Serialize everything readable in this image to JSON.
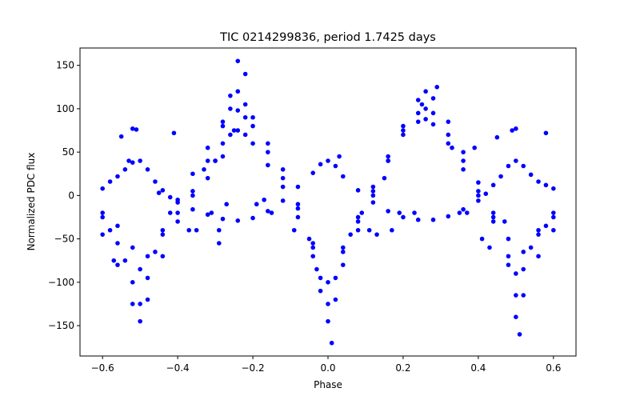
{
  "chart_data": {
    "type": "scatter",
    "title": "TIC 0214299836, period 1.7425 days",
    "xlabel": "Phase",
    "ylabel": "Normalized PDC flux",
    "xlim": [
      -0.66,
      0.66
    ],
    "ylim": [
      -185,
      170
    ],
    "xticks": [
      -0.6,
      -0.4,
      -0.2,
      0.0,
      0.2,
      0.4,
      0.6
    ],
    "xtick_labels": [
      "−0.6",
      "−0.4",
      "−0.2",
      "0.0",
      "0.2",
      "0.4",
      "0.6"
    ],
    "yticks": [
      -150,
      -100,
      -50,
      0,
      50,
      100,
      150
    ],
    "ytick_labels": [
      "−150",
      "−100",
      "−50",
      "0",
      "50",
      "100",
      "150"
    ],
    "grid": false,
    "series": [
      {
        "color": "#0000ff",
        "marker": "circle",
        "x": [
          -0.6,
          -0.58,
          -0.56,
          -0.54,
          -0.52,
          -0.5,
          -0.48,
          -0.46,
          -0.44,
          -0.42,
          -0.4,
          -0.36,
          -0.32,
          -0.28,
          -0.24,
          -0.2,
          -0.16,
          -0.12,
          -0.08,
          -0.04,
          -0.02,
          0.0,
          0.02,
          0.04,
          0.08,
          0.12,
          0.16,
          0.2,
          0.24,
          0.28,
          0.32,
          0.36,
          0.4,
          0.42,
          0.44,
          0.46,
          0.48,
          0.5,
          0.52,
          0.54,
          0.56,
          0.58,
          0.6
        ],
        "y": [
          8,
          16,
          22,
          30,
          38,
          40,
          30,
          16,
          6,
          -2,
          -8,
          -16,
          -22,
          -27,
          -29,
          -26,
          -18,
          -6,
          10,
          26,
          36,
          40,
          34,
          22,
          6,
          -8,
          -18,
          -25,
          -28,
          -28,
          -24,
          -16,
          -6,
          2,
          12,
          22,
          34,
          40,
          34,
          24,
          16,
          12,
          8
        ]
      },
      {
        "color": "#0000ff",
        "marker": "circle",
        "x": [
          -0.6,
          -0.58,
          -0.56,
          -0.54,
          -0.52,
          -0.5,
          -0.48,
          -0.46,
          -0.44,
          -0.42,
          -0.4,
          -0.36,
          -0.32,
          -0.28,
          -0.26,
          -0.24,
          -0.22,
          -0.2,
          -0.16,
          -0.12,
          -0.08,
          -0.04,
          -0.02,
          0.0,
          0.02,
          0.04,
          0.08,
          0.12,
          0.16,
          0.2,
          0.24,
          0.26,
          0.28,
          0.32,
          0.36,
          0.4,
          0.44,
          0.48,
          0.5,
          0.52,
          0.54,
          0.56,
          0.58,
          0.6
        ],
        "y": [
          -25,
          -40,
          -55,
          -75,
          -100,
          -125,
          -95,
          -65,
          -40,
          -20,
          -5,
          25,
          55,
          85,
          100,
          98,
          90,
          80,
          50,
          20,
          -15,
          -55,
          -95,
          -125,
          -95,
          -65,
          -30,
          5,
          40,
          75,
          95,
          100,
          95,
          70,
          40,
          5,
          -30,
          -70,
          -115,
          -85,
          -60,
          -45,
          -35,
          -25
        ]
      },
      {
        "color": "#0000ff",
        "marker": "circle",
        "x": [
          -0.6,
          -0.56,
          -0.52,
          -0.5,
          -0.48,
          -0.44,
          -0.4,
          -0.36,
          -0.32,
          -0.28,
          -0.26,
          -0.24,
          -0.22,
          -0.2,
          -0.16,
          -0.12,
          -0.08,
          -0.04,
          -0.02,
          0.0,
          0.02,
          0.04,
          0.08,
          0.12,
          0.16,
          0.2,
          0.24,
          0.26,
          0.28,
          0.32,
          0.36,
          0.4,
          0.44,
          0.48,
          0.5,
          0.52,
          0.56,
          0.6
        ],
        "y": [
          -45,
          -80,
          -125,
          -145,
          -120,
          -70,
          -30,
          5,
          40,
          80,
          115,
          120,
          105,
          90,
          60,
          30,
          -10,
          -70,
          -110,
          -145,
          -120,
          -80,
          -40,
          0,
          40,
          80,
          110,
          120,
          112,
          85,
          50,
          15,
          -25,
          -80,
          -140,
          -115,
          -70,
          -40
        ]
      },
      {
        "color": "#0000ff",
        "marker": "circle",
        "x": [
          -0.6,
          -0.56,
          -0.52,
          -0.5,
          -0.48,
          -0.44,
          -0.4,
          -0.36,
          -0.32,
          -0.3,
          -0.28,
          -0.26,
          -0.24,
          -0.22,
          -0.2,
          -0.16,
          -0.12,
          -0.08,
          -0.04,
          0.0,
          0.04,
          0.08,
          0.12,
          0.16,
          0.2,
          0.24,
          0.26,
          0.28,
          0.32,
          0.36,
          0.4,
          0.44,
          0.48,
          0.5,
          0.52,
          0.56,
          0.6
        ],
        "y": [
          -20,
          -35,
          -60,
          -85,
          -70,
          -45,
          -20,
          0,
          20,
          40,
          60,
          70,
          75,
          70,
          60,
          35,
          10,
          -25,
          -60,
          -100,
          -60,
          -25,
          10,
          45,
          70,
          85,
          88,
          82,
          60,
          30,
          0,
          -20,
          -50,
          -90,
          -65,
          -40,
          -20
        ]
      },
      {
        "color": "#0000ff",
        "marker": "circle",
        "x": [
          -0.57,
          -0.55,
          -0.53,
          -0.52,
          -0.51,
          -0.45,
          -0.41,
          -0.37,
          -0.35,
          -0.33,
          -0.31,
          -0.3,
          -0.29,
          -0.29,
          -0.28,
          -0.27,
          -0.25,
          -0.24,
          -0.22,
          -0.19,
          -0.17,
          -0.15,
          -0.09,
          -0.05,
          -0.03,
          0.01,
          0.03,
          0.06,
          0.09,
          0.11,
          0.13,
          0.15,
          0.17,
          0.19,
          0.23,
          0.25,
          0.29,
          0.33,
          0.35,
          0.37,
          0.39,
          0.41,
          0.43,
          0.45,
          0.47,
          0.49,
          0.5,
          0.51,
          0.58
        ],
        "y": [
          -75,
          68,
          40,
          77,
          76,
          3,
          72,
          -40,
          -40,
          30,
          -20,
          40,
          -40,
          -55,
          45,
          -10,
          75,
          155,
          140,
          -10,
          -5,
          -20,
          -40,
          -50,
          -85,
          -170,
          45,
          -45,
          -20,
          -40,
          -45,
          20,
          -40,
          -20,
          -20,
          105,
          125,
          55,
          -20,
          -20,
          55,
          -50,
          -60,
          67,
          -30,
          75,
          77,
          -160,
          72
        ]
      }
    ]
  }
}
